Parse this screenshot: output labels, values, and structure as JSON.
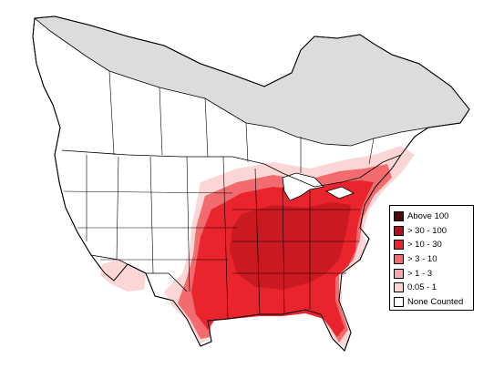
{
  "map": {
    "region": "North America",
    "colors": {
      "land_uncounted": "#ffffff",
      "land_not_surveyed": "#dcdcdc",
      "borders": "#000000",
      "water": "#ffffff"
    }
  },
  "legend": {
    "items": [
      {
        "label": "Above 100",
        "color": "#4d0b0b"
      },
      {
        "label": "> 30 - 100",
        "color": "#b3101a"
      },
      {
        "label": "> 10 - 30",
        "color": "#e9242c"
      },
      {
        "label": "> 3 - 10",
        "color": "#f26b6e"
      },
      {
        "label": "> 1 - 3",
        "color": "#f7aaab"
      },
      {
        "label": "0.05 - 1",
        "color": "#fbd6d6"
      },
      {
        "label": "None Counted",
        "color": "#ffffff"
      }
    ]
  }
}
